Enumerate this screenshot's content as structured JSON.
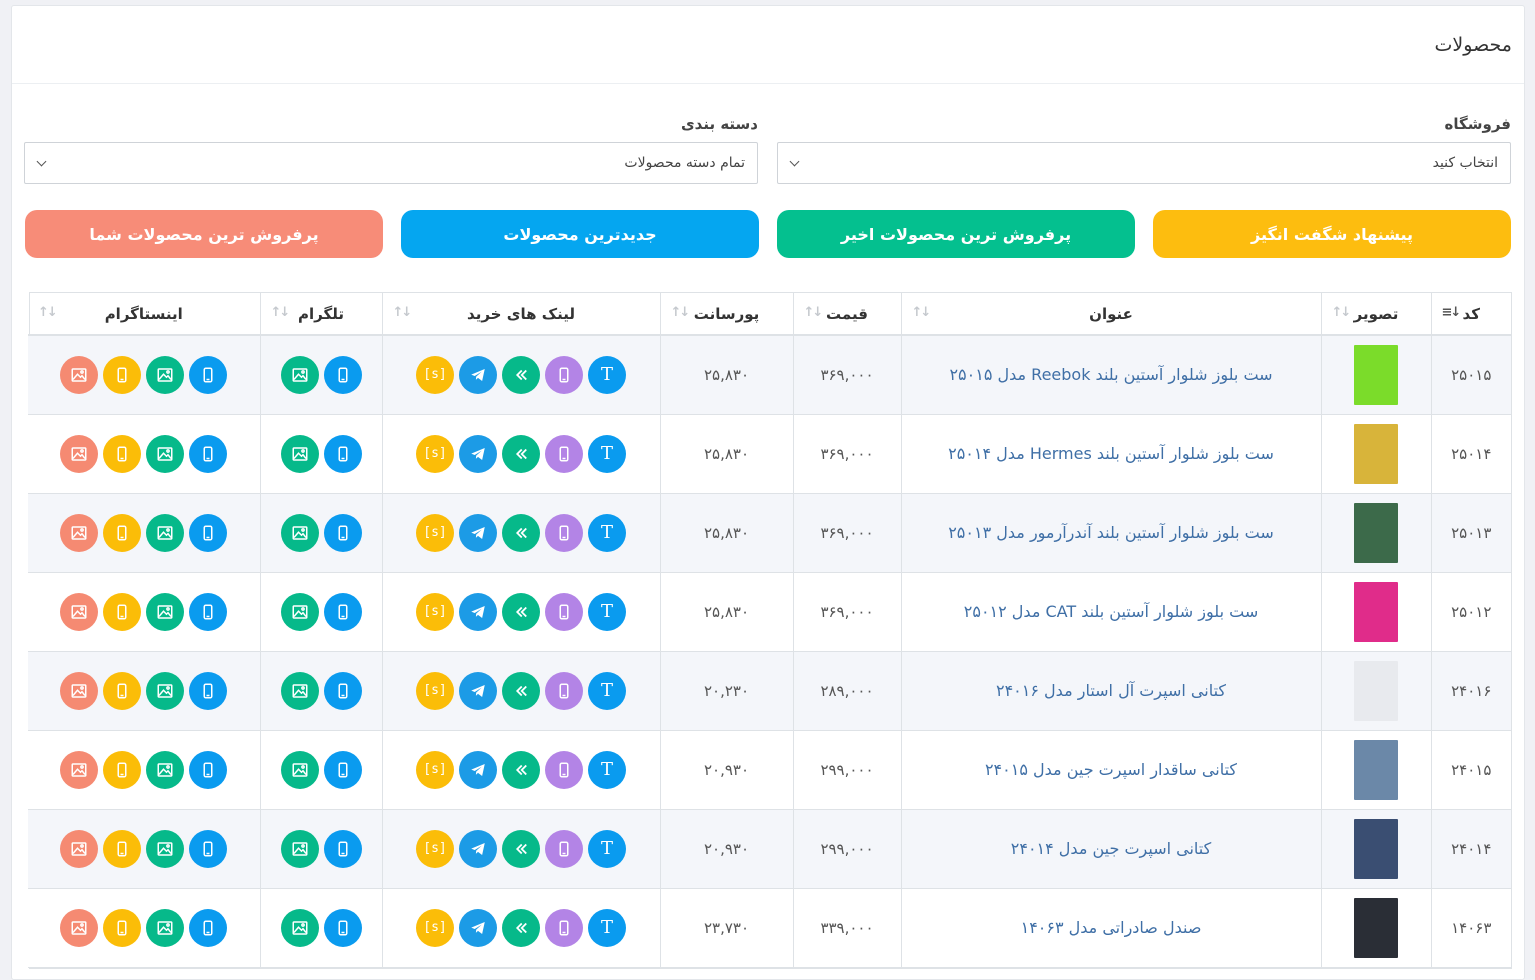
{
  "header": {
    "title": "محصولات"
  },
  "filters": {
    "store": {
      "label": "فروشگاه",
      "value": "انتخاب کنید"
    },
    "category": {
      "label": "دسته بندی",
      "value": "تمام دسته محصولات"
    }
  },
  "buttons": [
    {
      "label": "پیشنهاد شگفت انگیز",
      "color": "#fdbd0f"
    },
    {
      "label": "پرفروش ترین محصولات اخیر",
      "color": "#04c08f"
    },
    {
      "label": "جدیدترین محصولات",
      "color": "#05a6f0"
    },
    {
      "label": "پرفروش ترین محصولات شما",
      "color": "#f78c78"
    }
  ],
  "table": {
    "columns": [
      "کد",
      "تصویر",
      "عنوان",
      "قیمت",
      "پورسانت",
      "لینک های خرید",
      "تلگرام",
      "اینستاگرام"
    ],
    "rows": [
      {
        "code": "۲۵۰۱۵",
        "title": "ست بلوز شلوار آستین بلند Reebok مدل ۲۵۰۱۵",
        "price": "۳۶۹,۰۰۰",
        "commission": "۲۵,۸۳۰",
        "thumb_color": "#7bdc2a"
      },
      {
        "code": "۲۵۰۱۴",
        "title": "ست بلوز شلوار آستین بلند Hermes مدل ۲۵۰۱۴",
        "price": "۳۶۹,۰۰۰",
        "commission": "۲۵,۸۳۰",
        "thumb_color": "#d8b43a"
      },
      {
        "code": "۲۵۰۱۳",
        "title": "ست بلوز شلوار آستین بلند آندرآرمور مدل ۲۵۰۱۳",
        "price": "۳۶۹,۰۰۰",
        "commission": "۲۵,۸۳۰",
        "thumb_color": "#3c6a4a"
      },
      {
        "code": "۲۵۰۱۲",
        "title": "ست بلوز شلوار آستین بلند CAT مدل ۲۵۰۱۲",
        "price": "۳۶۹,۰۰۰",
        "commission": "۲۵,۸۳۰",
        "thumb_color": "#e02c8a"
      },
      {
        "code": "۲۴۰۱۶",
        "title": "کتانی اسپرت آل استار مدل ۲۴۰۱۶",
        "price": "۲۸۹,۰۰۰",
        "commission": "۲۰,۲۳۰",
        "thumb_color": "#e8eaee"
      },
      {
        "code": "۲۴۰۱۵",
        "title": "کتانی ساقدار اسپرت جین مدل ۲۴۰۱۵",
        "price": "۲۹۹,۰۰۰",
        "commission": "۲۰,۹۳۰",
        "thumb_color": "#6b88a8"
      },
      {
        "code": "۲۴۰۱۴",
        "title": "کتانی اسپرت جین مدل ۲۴۰۱۴",
        "price": "۲۹۹,۰۰۰",
        "commission": "۲۰,۹۳۰",
        "thumb_color": "#3a4e72"
      },
      {
        "code": "۱۴۰۶۳",
        "title": "صندل صادراتی مدل ۱۴۰۶۳",
        "price": "۳۳۹,۰۰۰",
        "commission": "۲۳,۷۳۰",
        "thumb_color": "#2a2e36"
      }
    ]
  },
  "icon_colors": {
    "blue": "#0a9bef",
    "purple": "#b384e6",
    "green": "#06b98a",
    "telegram": "#1c9be6",
    "yellow": "#fbbd08",
    "salmon": "#f58a72"
  },
  "icon_text": {
    "text": "T",
    "shortlink": "[s]"
  }
}
